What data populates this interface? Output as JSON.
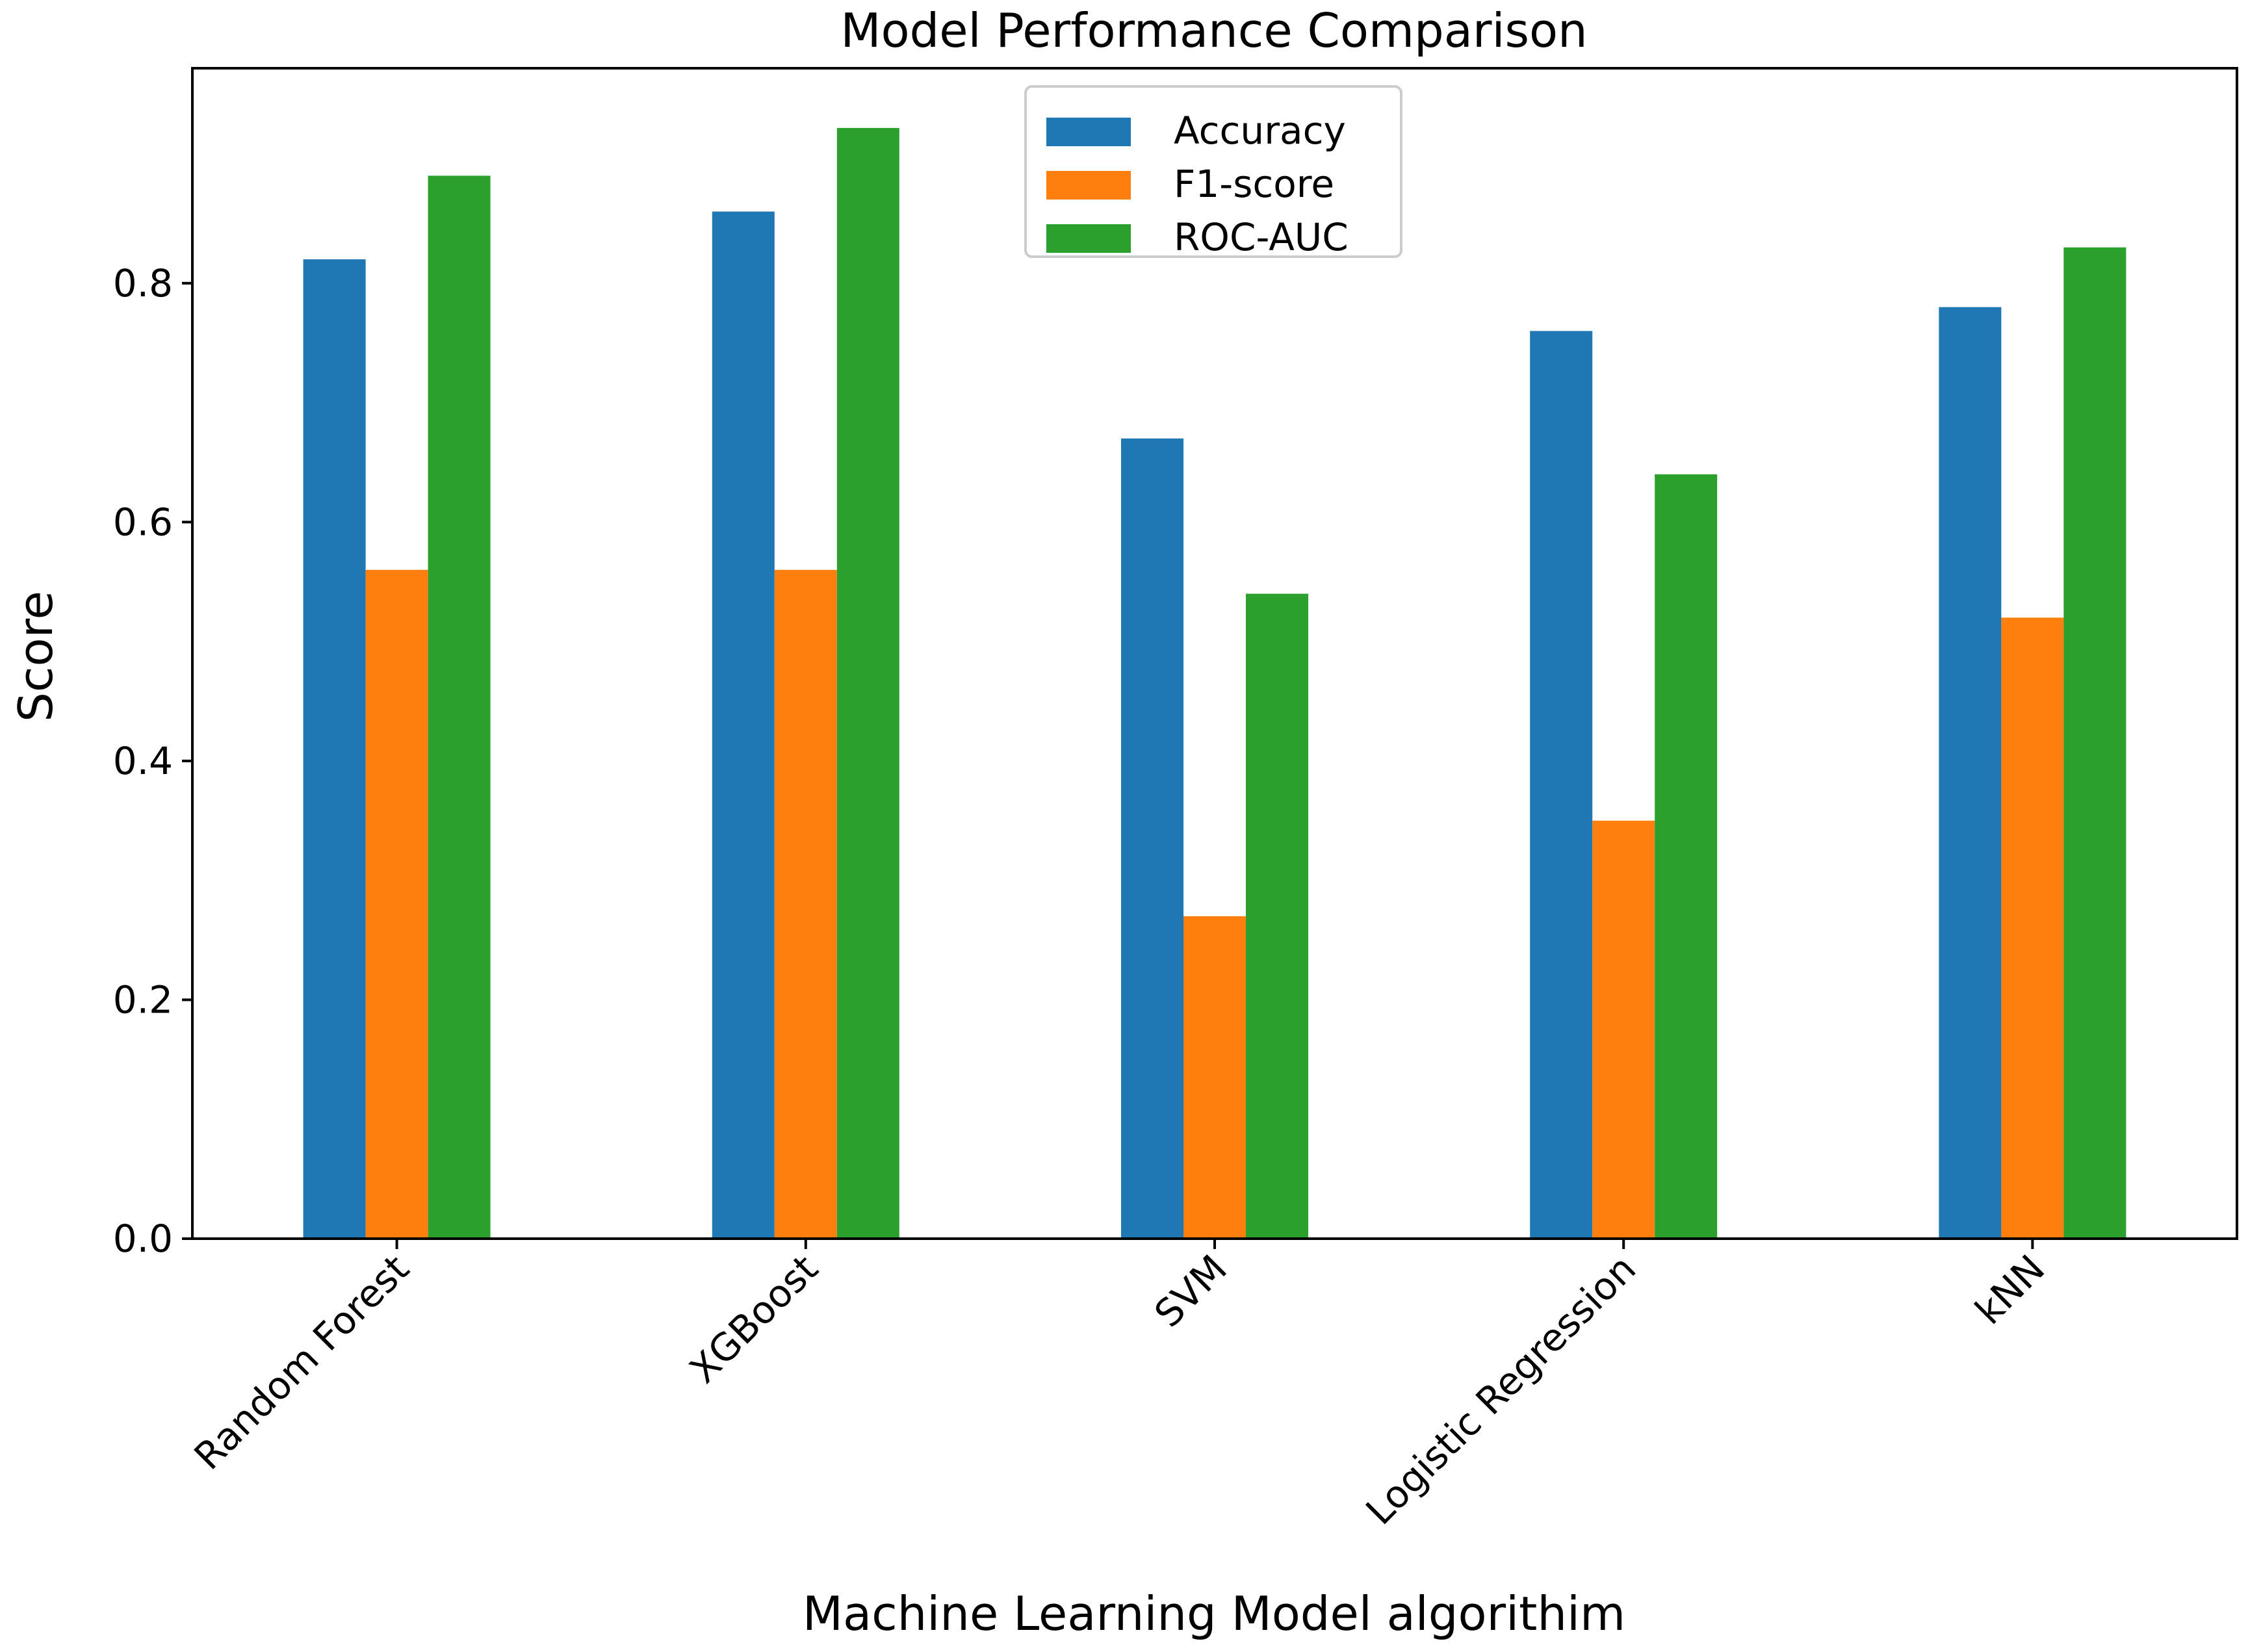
{
  "chart_data": {
    "type": "bar",
    "title": "Model Performance Comparison",
    "xlabel": "Machine Learning Model algorithim",
    "ylabel": "Score",
    "categories": [
      "Random Forest",
      "XGBoost",
      "SVM",
      "Logistic Regression",
      "kNN"
    ],
    "series": [
      {
        "name": "Accuracy",
        "color": "#1f77b4",
        "values": [
          0.82,
          0.86,
          0.67,
          0.76,
          0.78
        ]
      },
      {
        "name": "F1-score",
        "color": "#ff7f0e",
        "values": [
          0.56,
          0.56,
          0.27,
          0.35,
          0.52
        ]
      },
      {
        "name": "ROC-AUC",
        "color": "#2ca02c",
        "values": [
          0.89,
          0.93,
          0.54,
          0.64,
          0.83
        ]
      }
    ],
    "ylim": [
      0.0,
      0.98
    ],
    "yticks": [
      0.0,
      0.2,
      0.4,
      0.6,
      0.8
    ],
    "ytick_labels": [
      "0.0",
      "0.2",
      "0.4",
      "0.6",
      "0.8"
    ],
    "grid": false,
    "legend_position": "top-center"
  }
}
